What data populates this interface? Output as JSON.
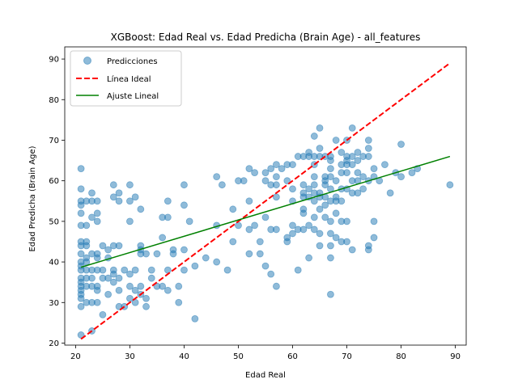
{
  "chart_data": {
    "type": "scatter",
    "title": "XGBoost: Edad Real vs. Edad Predicha (Brain Age) - all_features",
    "xlabel": "Edad Real",
    "ylabel": "Edad Predicha (Brain Age)",
    "xlim": [
      18,
      92
    ],
    "ylim": [
      19.5,
      93
    ],
    "xticks": [
      20,
      30,
      40,
      50,
      60,
      70,
      80,
      90
    ],
    "yticks": [
      20,
      30,
      40,
      50,
      60,
      70,
      80,
      90
    ],
    "grid": false,
    "legend_position": "upper-left",
    "series": [
      {
        "name": "Predicciones",
        "kind": "scatter",
        "color": "#1f77b4",
        "alpha": 0.5,
        "points": [
          [
            21,
            63
          ],
          [
            21,
            58
          ],
          [
            21,
            55
          ],
          [
            21,
            54
          ],
          [
            21,
            52
          ],
          [
            21,
            49
          ],
          [
            21,
            45
          ],
          [
            21,
            44
          ],
          [
            21,
            42
          ],
          [
            21,
            40
          ],
          [
            21,
            39
          ],
          [
            21,
            38
          ],
          [
            21,
            36
          ],
          [
            21,
            35
          ],
          [
            21,
            34
          ],
          [
            21,
            33
          ],
          [
            21,
            32
          ],
          [
            21,
            31
          ],
          [
            21,
            29
          ],
          [
            21,
            22
          ],
          [
            22,
            55
          ],
          [
            22,
            49
          ],
          [
            22,
            45
          ],
          [
            22,
            44
          ],
          [
            22,
            41
          ],
          [
            22,
            40
          ],
          [
            22,
            38
          ],
          [
            22,
            36
          ],
          [
            22,
            34
          ],
          [
            22,
            30
          ],
          [
            23,
            57
          ],
          [
            23,
            55
          ],
          [
            23,
            51
          ],
          [
            23,
            42
          ],
          [
            23,
            38
          ],
          [
            23,
            36
          ],
          [
            23,
            34
          ],
          [
            23,
            30
          ],
          [
            23,
            23
          ],
          [
            24,
            55
          ],
          [
            24,
            52
          ],
          [
            24,
            50
          ],
          [
            24,
            42
          ],
          [
            24,
            41
          ],
          [
            24,
            38
          ],
          [
            24,
            34
          ],
          [
            24,
            33
          ],
          [
            24,
            30
          ],
          [
            25,
            44
          ],
          [
            25,
            38
          ],
          [
            25,
            36
          ],
          [
            25,
            27
          ],
          [
            26,
            43
          ],
          [
            26,
            41
          ],
          [
            26,
            36
          ],
          [
            26,
            32
          ],
          [
            27,
            59
          ],
          [
            27,
            56
          ],
          [
            27,
            44
          ],
          [
            27,
            38
          ],
          [
            27,
            37
          ],
          [
            27,
            35
          ],
          [
            28,
            57
          ],
          [
            28,
            55
          ],
          [
            28,
            44
          ],
          [
            28,
            36
          ],
          [
            28,
            33
          ],
          [
            28,
            29
          ],
          [
            29,
            38
          ],
          [
            29,
            29
          ],
          [
            30,
            59
          ],
          [
            30,
            55
          ],
          [
            30,
            50
          ],
          [
            30,
            37
          ],
          [
            30,
            34
          ],
          [
            30,
            31
          ],
          [
            31,
            56
          ],
          [
            31,
            38
          ],
          [
            31,
            33
          ],
          [
            31,
            30
          ],
          [
            32,
            53
          ],
          [
            32,
            44
          ],
          [
            32,
            43
          ],
          [
            32,
            42
          ],
          [
            32,
            34
          ],
          [
            32,
            32
          ],
          [
            33,
            42
          ],
          [
            33,
            31
          ],
          [
            33,
            29
          ],
          [
            34,
            38
          ],
          [
            34,
            36
          ],
          [
            35,
            42
          ],
          [
            35,
            34
          ],
          [
            36,
            51
          ],
          [
            36,
            46
          ],
          [
            36,
            34
          ],
          [
            37,
            55
          ],
          [
            37,
            51
          ],
          [
            37,
            38
          ],
          [
            37,
            33
          ],
          [
            38,
            43
          ],
          [
            38,
            42
          ],
          [
            39,
            34
          ],
          [
            39,
            30
          ],
          [
            40,
            59
          ],
          [
            40,
            54
          ],
          [
            40,
            43
          ],
          [
            40,
            38
          ],
          [
            41,
            50
          ],
          [
            42,
            39
          ],
          [
            42,
            26
          ],
          [
            44,
            41
          ],
          [
            46,
            61
          ],
          [
            46,
            49
          ],
          [
            46,
            40
          ],
          [
            47,
            59
          ],
          [
            48,
            38
          ],
          [
            49,
            53
          ],
          [
            49,
            45
          ],
          [
            50,
            60
          ],
          [
            50,
            49
          ],
          [
            51,
            60
          ],
          [
            52,
            63
          ],
          [
            52,
            55
          ],
          [
            52,
            48
          ],
          [
            52,
            42
          ],
          [
            53,
            62
          ],
          [
            53,
            49
          ],
          [
            54,
            45
          ],
          [
            54,
            42
          ],
          [
            55,
            62
          ],
          [
            55,
            60
          ],
          [
            55,
            51
          ],
          [
            55,
            39
          ],
          [
            56,
            63
          ],
          [
            56,
            59
          ],
          [
            56,
            48
          ],
          [
            56,
            37
          ],
          [
            57,
            64
          ],
          [
            57,
            61
          ],
          [
            57,
            59
          ],
          [
            57,
            56
          ],
          [
            57,
            48
          ],
          [
            57,
            34
          ],
          [
            58,
            63
          ],
          [
            59,
            64
          ],
          [
            59,
            60
          ],
          [
            59,
            46
          ],
          [
            59,
            45
          ],
          [
            60,
            64
          ],
          [
            60,
            58
          ],
          [
            60,
            55
          ],
          [
            60,
            49
          ],
          [
            60,
            47
          ],
          [
            61,
            66
          ],
          [
            61,
            48
          ],
          [
            61,
            38
          ],
          [
            62,
            66
          ],
          [
            62,
            59
          ],
          [
            62,
            57
          ],
          [
            62,
            56
          ],
          [
            62,
            53
          ],
          [
            62,
            52
          ],
          [
            62,
            48
          ],
          [
            63,
            67
          ],
          [
            63,
            66
          ],
          [
            63,
            58
          ],
          [
            63,
            56
          ],
          [
            63,
            49
          ],
          [
            63,
            41
          ],
          [
            64,
            71
          ],
          [
            64,
            66
          ],
          [
            64,
            64
          ],
          [
            64,
            61
          ],
          [
            64,
            59
          ],
          [
            64,
            57
          ],
          [
            64,
            55
          ],
          [
            64,
            51
          ],
          [
            64,
            48
          ],
          [
            65,
            73
          ],
          [
            65,
            68
          ],
          [
            65,
            66
          ],
          [
            65,
            57
          ],
          [
            65,
            56
          ],
          [
            65,
            53
          ],
          [
            65,
            47
          ],
          [
            65,
            44
          ],
          [
            66,
            66
          ],
          [
            66,
            61
          ],
          [
            66,
            60
          ],
          [
            66,
            59
          ],
          [
            66,
            56
          ],
          [
            66,
            54
          ],
          [
            66,
            51
          ],
          [
            67,
            66
          ],
          [
            67,
            65
          ],
          [
            67,
            63
          ],
          [
            67,
            61
          ],
          [
            67,
            58
          ],
          [
            67,
            55
          ],
          [
            67,
            50
          ],
          [
            67,
            47
          ],
          [
            67,
            44
          ],
          [
            67,
            41
          ],
          [
            67,
            32
          ],
          [
            68,
            70
          ],
          [
            68,
            60
          ],
          [
            68,
            56
          ],
          [
            68,
            55
          ],
          [
            68,
            52
          ],
          [
            68,
            46
          ],
          [
            69,
            67
          ],
          [
            69,
            64
          ],
          [
            69,
            62
          ],
          [
            69,
            58
          ],
          [
            69,
            55
          ],
          [
            69,
            50
          ],
          [
            69,
            45
          ],
          [
            70,
            70
          ],
          [
            70,
            66
          ],
          [
            70,
            65
          ],
          [
            70,
            64
          ],
          [
            70,
            62
          ],
          [
            70,
            58
          ],
          [
            70,
            50
          ],
          [
            70,
            45
          ],
          [
            71,
            73
          ],
          [
            71,
            66
          ],
          [
            71,
            64
          ],
          [
            71,
            60
          ],
          [
            71,
            57
          ],
          [
            71,
            43
          ],
          [
            72,
            67
          ],
          [
            72,
            65
          ],
          [
            72,
            62
          ],
          [
            72,
            60
          ],
          [
            72,
            57
          ],
          [
            73,
            66
          ],
          [
            73,
            61
          ],
          [
            73,
            58
          ],
          [
            74,
            70
          ],
          [
            74,
            68
          ],
          [
            74,
            66
          ],
          [
            74,
            60
          ],
          [
            74,
            44
          ],
          [
            74,
            43
          ],
          [
            75,
            63
          ],
          [
            75,
            61
          ],
          [
            75,
            50
          ],
          [
            75,
            46
          ],
          [
            76,
            60
          ],
          [
            77,
            64
          ],
          [
            78,
            57
          ],
          [
            79,
            62
          ],
          [
            80,
            69
          ],
          [
            80,
            61
          ],
          [
            82,
            62
          ],
          [
            83,
            63
          ],
          [
            89,
            59
          ]
        ]
      },
      {
        "name": "Línea Ideal",
        "kind": "line",
        "color": "#ff0000",
        "dashed": true,
        "x": [
          21,
          89
        ],
        "y": [
          21,
          89
        ]
      },
      {
        "name": "Ajuste Lineal",
        "kind": "line",
        "color": "#008000",
        "dashed": false,
        "x": [
          21,
          89
        ],
        "y": [
          38.7,
          66
        ]
      }
    ]
  }
}
